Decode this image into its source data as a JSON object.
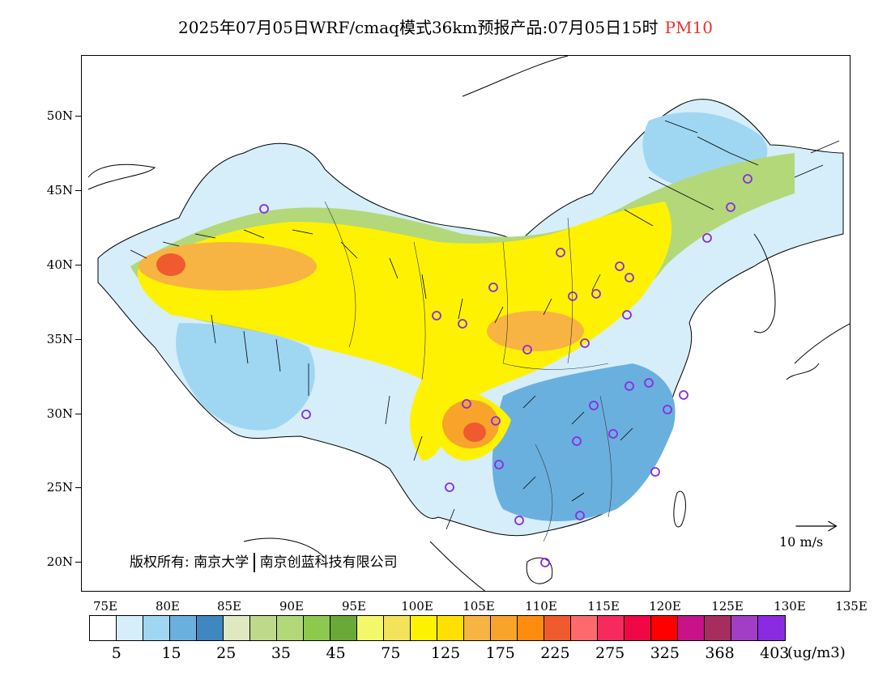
{
  "title": {
    "main": "2025年07月05日WRF/cmaq模式36km预报产品:07月05日15时",
    "variable": "PM10",
    "variable_color": "#e8322e"
  },
  "axes": {
    "lat_labels": [
      "50N",
      "45N",
      "40N",
      "35N",
      "30N",
      "25N",
      "20N"
    ],
    "lon_labels": [
      "75E",
      "80E",
      "85E",
      "90E",
      "95E",
      "100E",
      "105E",
      "110E",
      "115E",
      "120E",
      "125E",
      "130E",
      "135E"
    ]
  },
  "copyright": {
    "prefix": "版权所有:",
    "org1": "南京大学",
    "org2": "南京创蓝科技有限公司"
  },
  "wind_reference": {
    "label": "10 m/s"
  },
  "colorbar": {
    "colors": [
      "#ffffff",
      "#d6eef9",
      "#9fd7f2",
      "#6ab0de",
      "#3f87c1",
      "#dfe8c0",
      "#bfd98a",
      "#b2d87a",
      "#8dc94f",
      "#6aa937",
      "#f3f76a",
      "#f3e35a",
      "#fff200",
      "#ffe000",
      "#f8b443",
      "#f8a42b",
      "#fd8c0f",
      "#ef5b2e",
      "#fc6a6e",
      "#f52a5e",
      "#ef0845",
      "#fe0000",
      "#c7128a",
      "#a62d60",
      "#a23ec6",
      "#8a2be2"
    ],
    "labels": [
      "5",
      "15",
      "25",
      "35",
      "45",
      "75",
      "125",
      "175",
      "225",
      "275",
      "325",
      "368",
      "403"
    ],
    "units": "(ug/m3)"
  },
  "legend_colors": {
    "city_marker": "#8a2be2",
    "wind_arrow": "#000000"
  }
}
